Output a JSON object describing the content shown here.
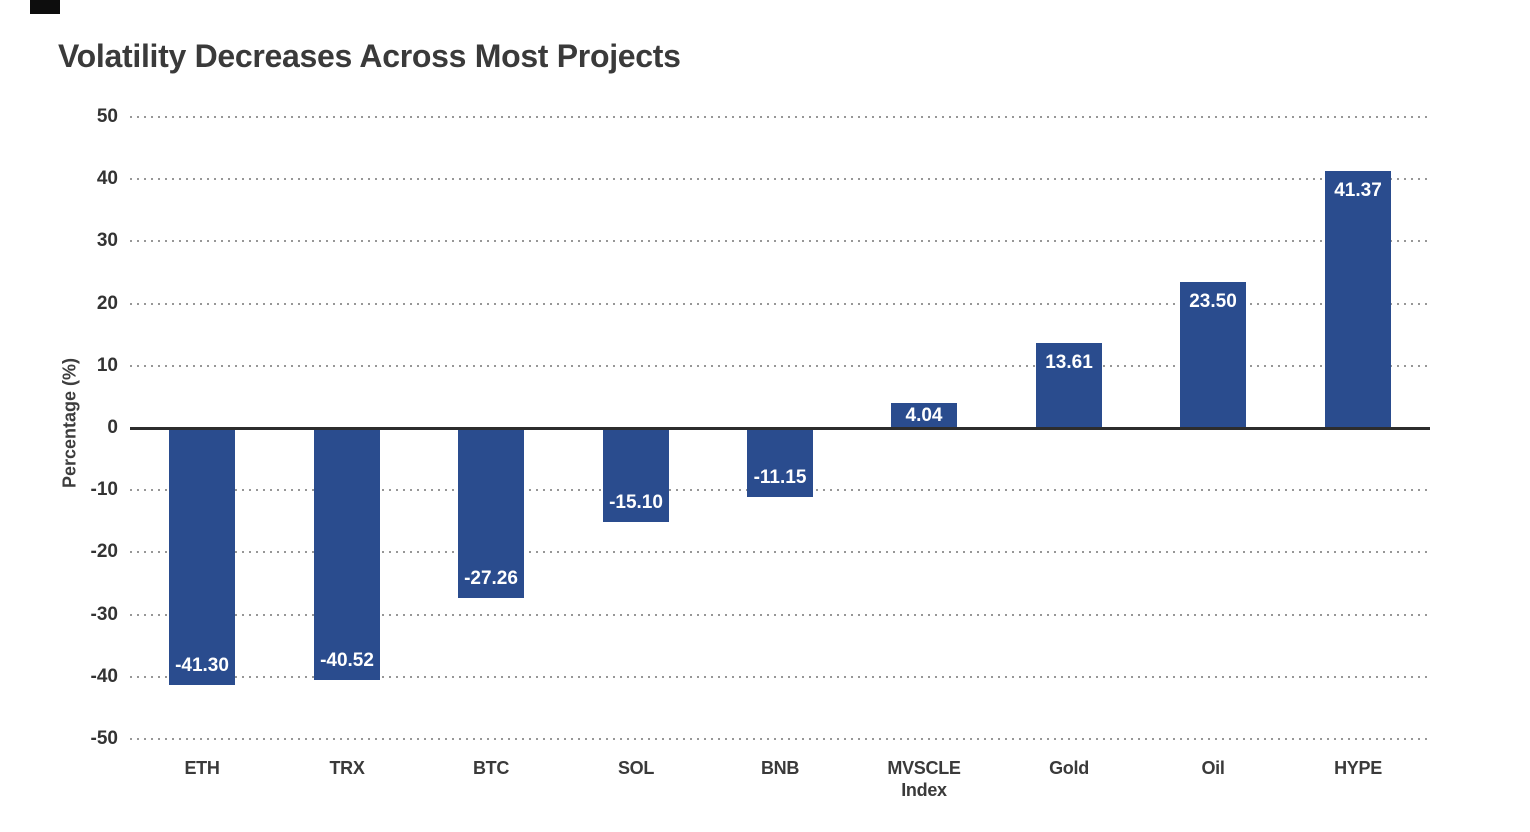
{
  "title": "Volatility Decreases Across Most Projects",
  "chart_data": {
    "type": "bar",
    "title": "Volatility Decreases Across Most Projects",
    "xlabel": "",
    "ylabel": "Percentage (%)",
    "ylim": [
      -50,
      50
    ],
    "yticks": [
      50,
      40,
      30,
      20,
      10,
      0,
      -10,
      -20,
      -30,
      -40,
      -50
    ],
    "grid": "horizontal-dotted",
    "legend_position": "none",
    "bar_color": "#2a4c8e",
    "value_label_color": "#ffffff",
    "zero_line_color": "#2d2d2d",
    "categories": [
      "ETH",
      "TRX",
      "BTC",
      "SOL",
      "BNB",
      "MVSCLE\nIndex",
      "Gold",
      "Oil",
      "HYPE"
    ],
    "values": [
      -41.3,
      -40.52,
      -27.26,
      -15.1,
      -11.15,
      4.04,
      13.61,
      23.5,
      41.37
    ],
    "value_labels": [
      "-41.30",
      "-40.52",
      "-27.26",
      "-15.10",
      "-11.15",
      "4.04",
      "13.61",
      "23.50",
      "41.37"
    ]
  }
}
